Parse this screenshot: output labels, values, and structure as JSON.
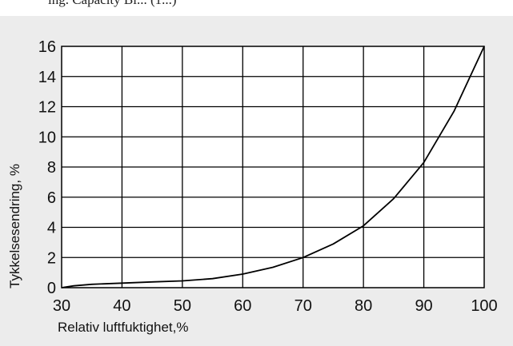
{
  "header_fragment": "ing. Capacity Bi... (1...)",
  "chart_data": {
    "type": "line",
    "title": "",
    "xlabel": "Relativ luftfuktighet,%",
    "ylabel": "Tykkelsesendring, %",
    "xlim": [
      30,
      100
    ],
    "ylim": [
      0,
      16
    ],
    "x_ticks": [
      30,
      40,
      50,
      60,
      70,
      80,
      90,
      100
    ],
    "y_ticks": [
      0,
      2,
      4,
      6,
      8,
      10,
      12,
      14,
      16
    ],
    "grid": true,
    "legend": "none",
    "line_color": "#000000",
    "series": [
      {
        "x": [
          30,
          32,
          35,
          40,
          45,
          50,
          55,
          60,
          65,
          70,
          75,
          80,
          85,
          90,
          95,
          100
        ],
        "values": [
          0.0,
          0.12,
          0.22,
          0.3,
          0.38,
          0.45,
          0.6,
          0.9,
          1.35,
          2.0,
          2.9,
          4.1,
          5.9,
          8.3,
          11.7,
          16.0
        ]
      }
    ]
  }
}
